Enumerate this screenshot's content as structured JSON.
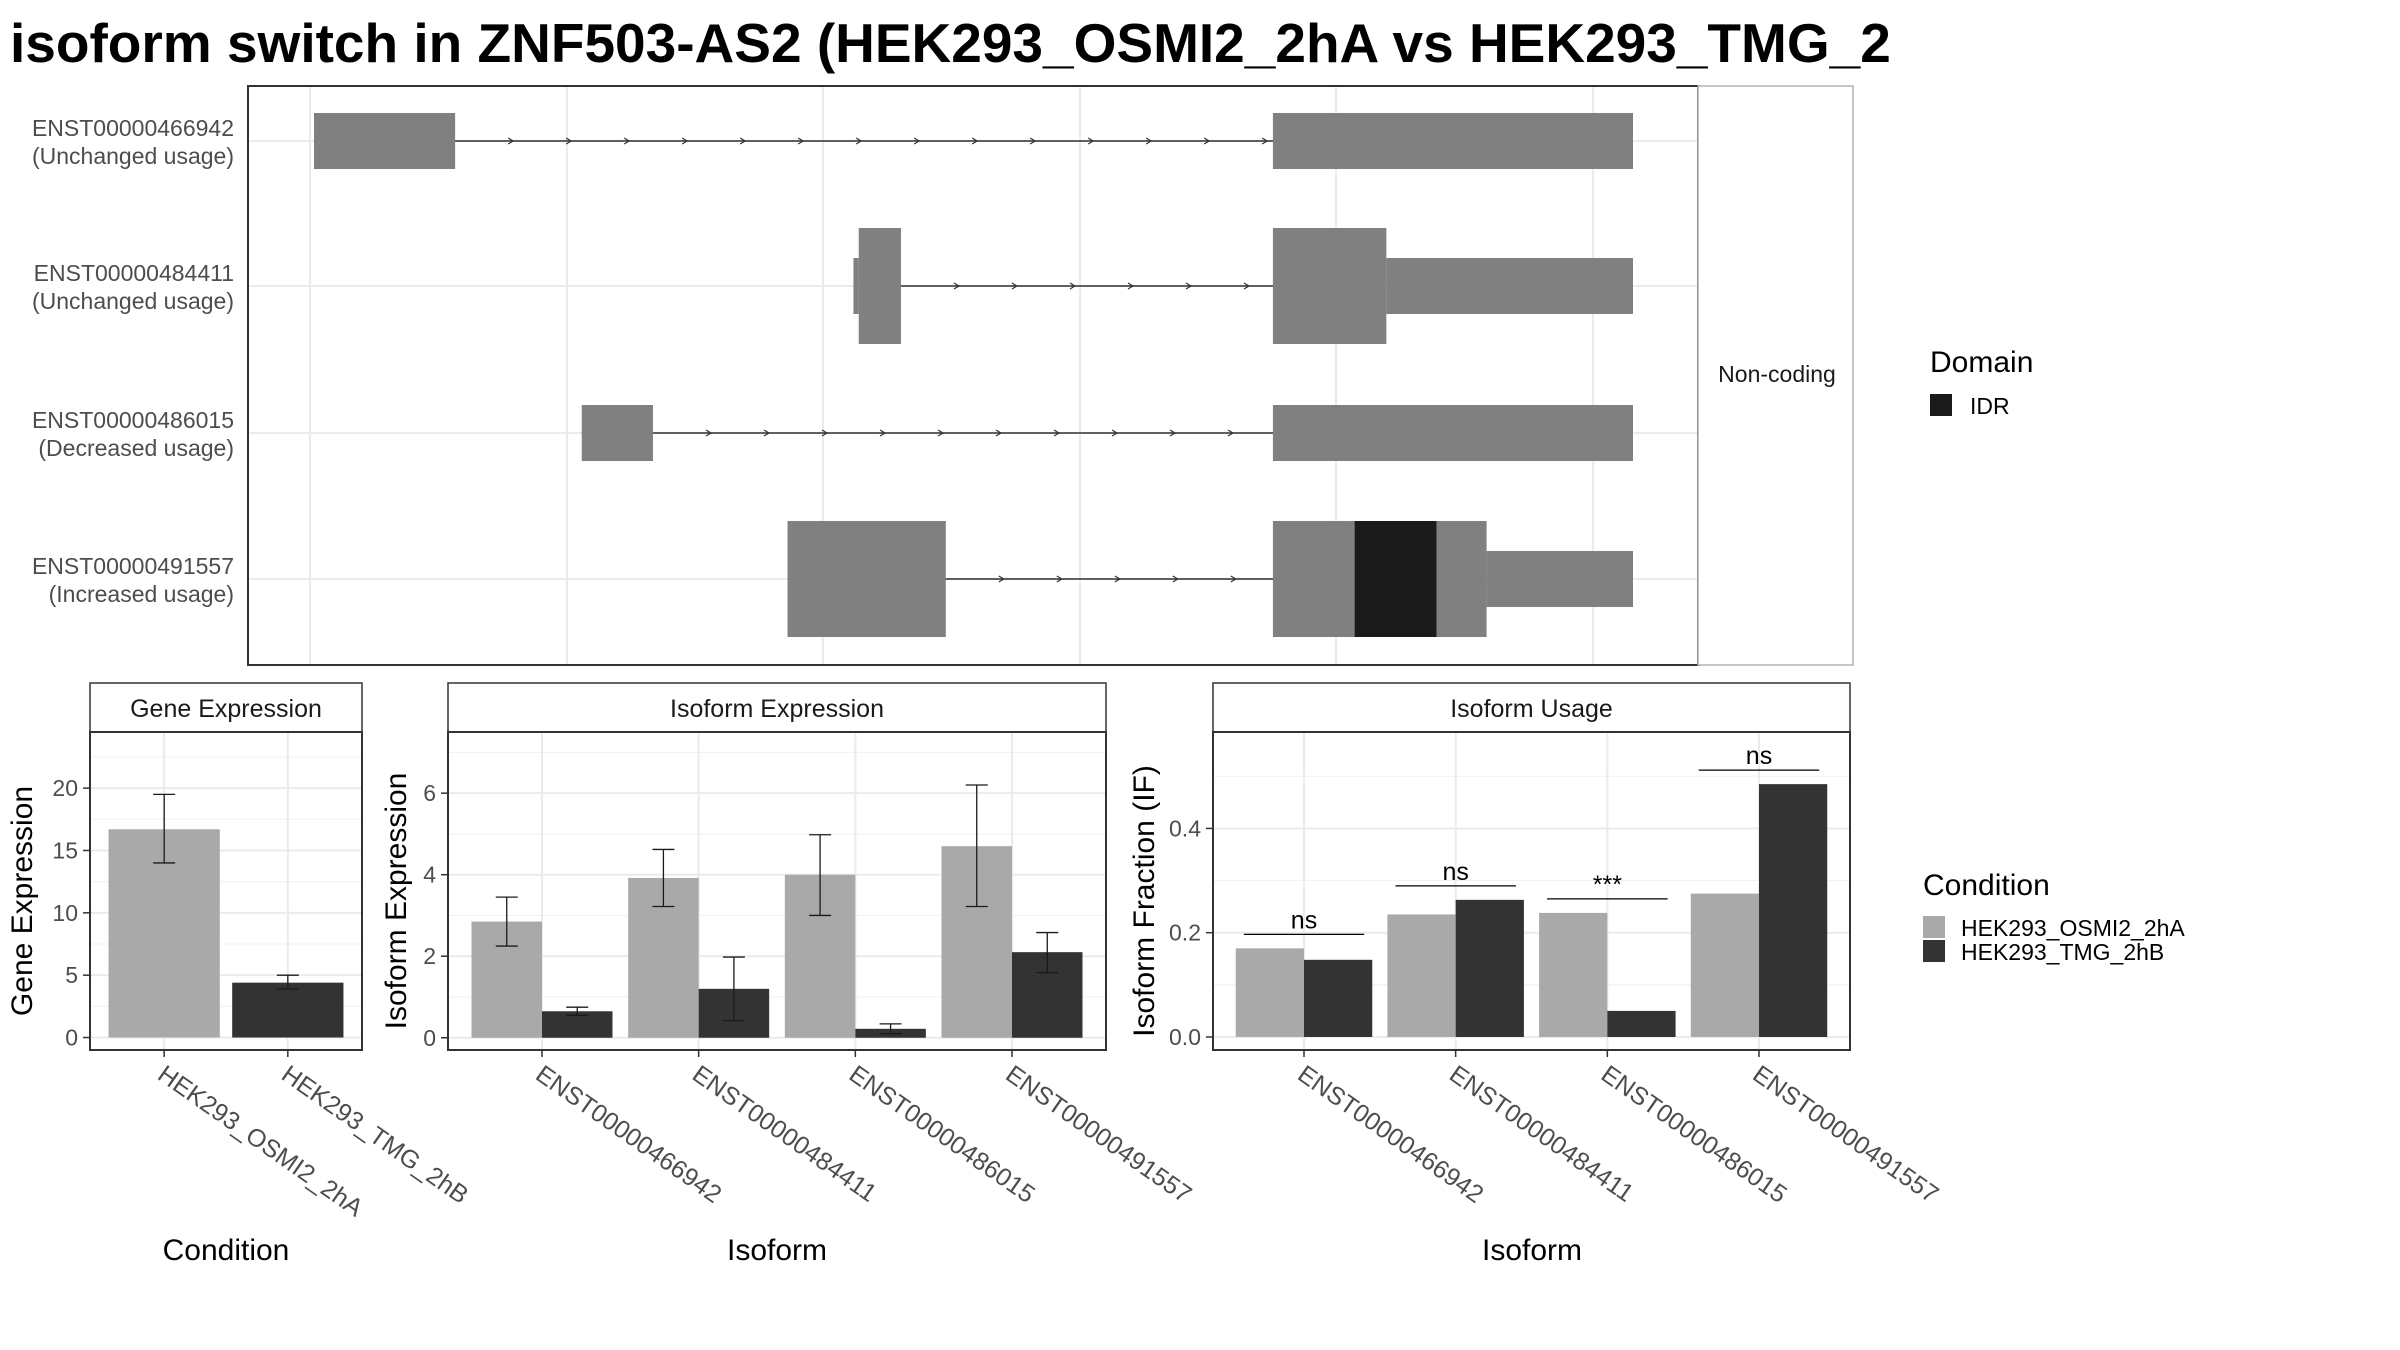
{
  "title": "isoform switch in ZNF503-AS2 (HEK293_OSMI2_2hA vs HEK293_TMG_2",
  "colors": {
    "isoform_body": "#808080",
    "domain_idr": "#1a1a1a",
    "condition_a": "#a9a9a9",
    "condition_b": "#333333",
    "grid": "#ebebeb",
    "panel_border": "#333333",
    "strip_border": "#b3b3b3",
    "tick_text": "#4d4d4d"
  },
  "chart_data": [
    {
      "type": "gene_structure",
      "strip_label": "Non-coding",
      "isoforms": [
        {
          "id": "ENST00000466942",
          "status": "(Unchanged usage)",
          "exons": [
            {
              "start": 0.0,
              "end": 0.107,
              "thick": "mid"
            },
            {
              "start": 0.727,
              "end": 1.0,
              "thick": "mid"
            }
          ],
          "domains": []
        },
        {
          "id": "ENST00000484411",
          "status": "(Unchanged usage)",
          "exons": [
            {
              "start": 0.409,
              "end": 0.413,
              "thick": "mid"
            },
            {
              "start": 0.413,
              "end": 0.445,
              "thick": "full"
            },
            {
              "start": 0.727,
              "end": 0.813,
              "thick": "full"
            },
            {
              "start": 0.813,
              "end": 1.0,
              "thick": "mid"
            }
          ],
          "domains": []
        },
        {
          "id": "ENST00000486015",
          "status": "(Decreased usage)",
          "exons": [
            {
              "start": 0.203,
              "end": 0.257,
              "thick": "mid"
            },
            {
              "start": 0.727,
              "end": 1.0,
              "thick": "mid"
            }
          ],
          "domains": []
        },
        {
          "id": "ENST00000491557",
          "status": "(Increased usage)",
          "exons": [
            {
              "start": 0.359,
              "end": 0.479,
              "thick": "full"
            },
            {
              "start": 0.727,
              "end": 0.889,
              "thick": "full"
            },
            {
              "start": 0.889,
              "end": 1.0,
              "thick": "mid"
            }
          ],
          "domains": [
            {
              "name": "IDR",
              "start": 0.789,
              "end": 0.851
            }
          ]
        }
      ],
      "legend": {
        "title": "Domain",
        "items": [
          "IDR"
        ]
      }
    },
    {
      "type": "bar",
      "strip_title": "Gene Expression",
      "xlabel": "Condition",
      "ylabel": "Gene Expression",
      "ylim": [
        -1,
        24.5
      ],
      "yticks": [
        0,
        5,
        10,
        15,
        20
      ],
      "categories": [
        "HEK293_OSMI2_2hA",
        "HEK293_TMG_2hB"
      ],
      "values": [
        16.7,
        4.4
      ],
      "errors": [
        [
          14.0,
          19.5
        ],
        [
          3.9,
          5.0
        ]
      ]
    },
    {
      "type": "bar",
      "strip_title": "Isoform Expression",
      "xlabel": "Isoform",
      "ylabel": "Isoform Expression",
      "ylim": [
        -0.3,
        7.5
      ],
      "yticks": [
        0,
        2,
        4,
        6
      ],
      "categories": [
        "ENST00000466942",
        "ENST00000484411",
        "ENST00000486015",
        "ENST00000491557"
      ],
      "series": [
        {
          "name": "HEK293_OSMI2_2hA",
          "values": [
            2.85,
            3.92,
            4.0,
            4.7
          ],
          "errors": [
            [
              2.25,
              3.45
            ],
            [
              3.22,
              4.62
            ],
            [
              3.0,
              4.98
            ],
            [
              3.22,
              6.2
            ]
          ]
        },
        {
          "name": "HEK293_TMG_2hB",
          "values": [
            0.65,
            1.2,
            0.22,
            2.1
          ],
          "errors": [
            [
              0.55,
              0.75
            ],
            [
              0.42,
              1.98
            ],
            [
              0.1,
              0.34
            ],
            [
              1.6,
              2.58
            ]
          ]
        }
      ]
    },
    {
      "type": "bar",
      "strip_title": "Isoform Usage",
      "xlabel": "Isoform",
      "ylabel": "Isoform Fraction (IF)",
      "ylim": [
        -0.025,
        0.585
      ],
      "yticks": [
        0.0,
        0.2,
        0.4
      ],
      "ytick_labels": [
        "0.0",
        "0.2",
        "0.4"
      ],
      "categories": [
        "ENST00000466942",
        "ENST00000484411",
        "ENST00000486015",
        "ENST00000491557"
      ],
      "series": [
        {
          "name": "HEK293_OSMI2_2hA",
          "values": [
            0.17,
            0.235,
            0.238,
            0.275
          ]
        },
        {
          "name": "HEK293_TMG_2hB",
          "values": [
            0.148,
            0.263,
            0.05,
            0.485
          ]
        }
      ],
      "significance": [
        "ns",
        "ns",
        "***",
        "ns"
      ]
    }
  ],
  "condition_legend": {
    "title": "Condition",
    "items": [
      "HEK293_OSMI2_2hA",
      "HEK293_TMG_2hB"
    ]
  }
}
